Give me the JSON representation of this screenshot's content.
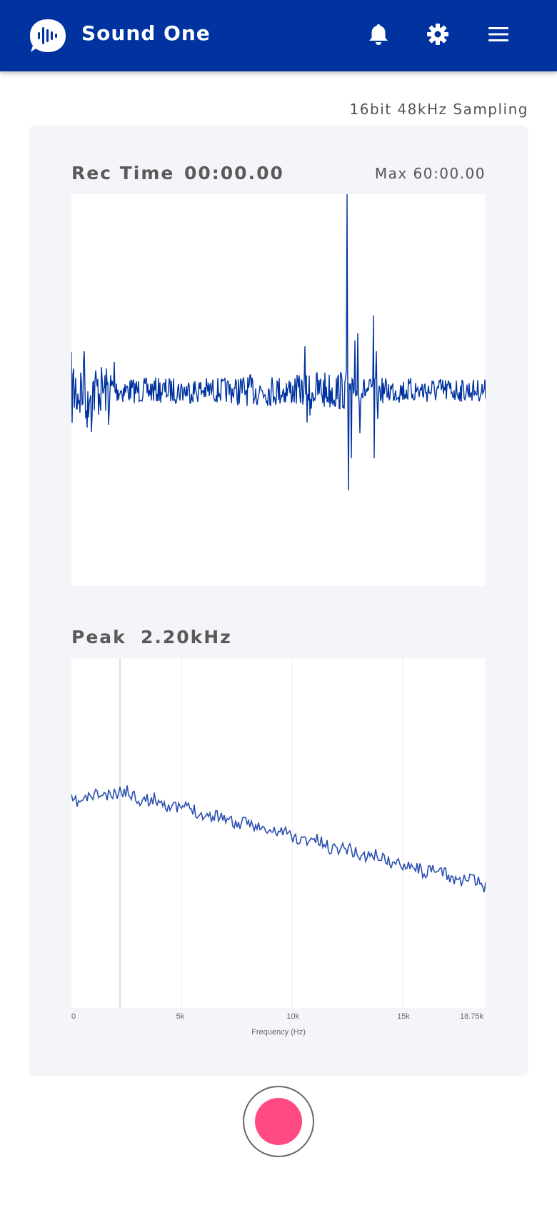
{
  "app": {
    "title": "Sound One",
    "brand_color": "#0033a0",
    "icons": [
      "bell-icon",
      "gear-icon",
      "menu-icon"
    ]
  },
  "recorder": {
    "sampling_label": "16bit 48kHz Sampling",
    "rec_time_label": "Rec Time",
    "rec_time_value": "00:00.00",
    "max_time_label": "Max 60:00.00",
    "peak_label": "Peak",
    "peak_value": "2.20kHz",
    "record_button_color": "#ff4a82"
  },
  "chart_data": [
    {
      "type": "line",
      "name": "waveform",
      "color": "#0033a0",
      "title": "",
      "xlabel": "",
      "ylabel": ""
    },
    {
      "type": "line",
      "name": "spectrum",
      "color": "#2a4fb0",
      "xlabel": "Frequency (Hz)",
      "xlim": [
        0,
        18750
      ],
      "xticks": [
        {
          "value": 0,
          "label": "0"
        },
        {
          "value": 5000,
          "label": "5k"
        },
        {
          "value": 10000,
          "label": "10k"
        },
        {
          "value": 15000,
          "label": "15k"
        },
        {
          "value": 18750,
          "label": "18.75k"
        }
      ],
      "peak_marker_hz": 2200,
      "grid": true
    }
  ]
}
